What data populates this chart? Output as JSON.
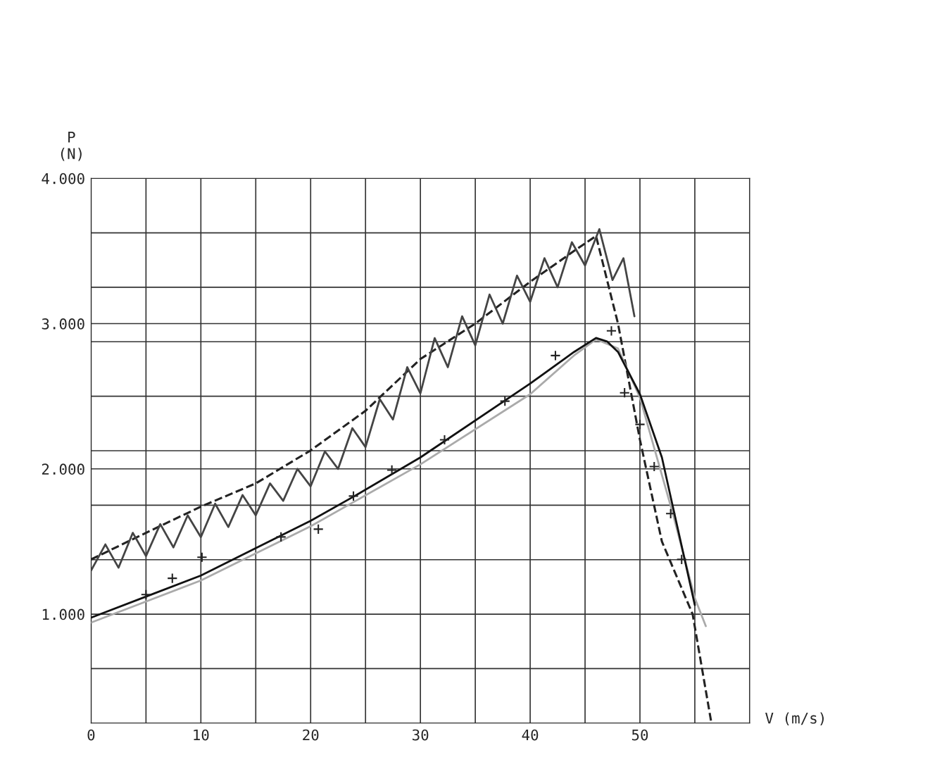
{
  "chart_data": {
    "type": "line",
    "xlabel": "V (m/s)",
    "ylabel": "P\n(N)",
    "xlim": [
      0,
      60
    ],
    "ylim": [
      250,
      4000
    ],
    "xticks": [
      0,
      {
        "value": 5,
        "label": null
      },
      10,
      {
        "value": 15,
        "label": null
      },
      20,
      {
        "value": 25,
        "label": null
      },
      30,
      {
        "value": 35,
        "label": null
      },
      40,
      {
        "value": 45,
        "label": null
      },
      50,
      {
        "value": 55,
        "label": null
      },
      {
        "value": 60,
        "label": null
      }
    ],
    "yticks": [
      {
        "value": 250,
        "label": null
      },
      {
        "value": 625,
        "label": null
      },
      {
        "value": 1000,
        "label": "1.000"
      },
      {
        "value": 1375,
        "label": null
      },
      {
        "value": 1750,
        "label": null
      },
      {
        "value": 2000,
        "label": "2.000"
      },
      {
        "value": 2125,
        "label": null
      },
      {
        "value": 2500,
        "label": null
      },
      {
        "value": 2875,
        "label": null
      },
      {
        "value": 3000,
        "label": "3.000"
      },
      {
        "value": 3250,
        "label": null
      },
      {
        "value": 3625,
        "label": null
      },
      {
        "value": 4000,
        "label": "4.000"
      }
    ],
    "grid": true,
    "series": [
      {
        "color": "#222222",
        "line_style": "dashed",
        "x": [
          0,
          5,
          10,
          15,
          20,
          25,
          30,
          35,
          40,
          44,
          46,
          48,
          50,
          52,
          54.8,
          56.5
        ],
        "values": [
          1377,
          1560,
          1740,
          1900,
          2127,
          2400,
          2756,
          3000,
          3288,
          3500,
          3603,
          3000,
          2200,
          1500,
          1000,
          255
        ]
      },
      {
        "color": "#444444",
        "x": [
          0,
          1.3,
          2.5,
          3.8,
          5,
          6.3,
          7.5,
          8.8,
          10,
          11.3,
          12.5,
          13.8,
          15,
          16.3,
          17.5,
          18.8,
          20,
          21.3,
          22.5,
          23.8,
          25,
          26.3,
          27.5,
          28.8,
          30,
          31.3,
          32.5,
          33.8,
          35,
          36.3,
          37.5,
          38.8,
          40,
          41.3,
          42.5,
          43.8,
          45,
          46.3,
          47.5,
          48.5,
          49.5
        ],
        "values": [
          1300,
          1480,
          1320,
          1560,
          1400,
          1620,
          1460,
          1680,
          1530,
          1760,
          1600,
          1820,
          1680,
          1900,
          1780,
          2000,
          1880,
          2120,
          2000,
          2280,
          2150,
          2480,
          2340,
          2700,
          2520,
          2900,
          2700,
          3050,
          2850,
          3200,
          3000,
          3330,
          3150,
          3450,
          3250,
          3560,
          3400,
          3650,
          3300,
          3450,
          3050
        ]
      },
      {
        "color": "#aaaaaa",
        "x": [
          0,
          10,
          20,
          30,
          40,
          44,
          46,
          48,
          50,
          53,
          55,
          56
        ],
        "values": [
          942,
          1232,
          1605,
          2031,
          2514,
          2781,
          2892,
          2829,
          2490,
          1692,
          1111,
          918
        ]
      },
      {
        "color": "#111111",
        "x": [
          0,
          5,
          10,
          20,
          24,
          30,
          40,
          44,
          46,
          47,
          48,
          50,
          52,
          53,
          54,
          55
        ],
        "values": [
          976,
          1121,
          1266,
          1643,
          1813,
          2079,
          2587,
          2805,
          2901,
          2877,
          2805,
          2514,
          2079,
          1740,
          1402,
          1063
        ]
      },
      {
        "type": "scatter",
        "color": "#222222",
        "marker": "cross",
        "x": [
          5,
          7.4,
          10.1,
          17.3,
          20.7,
          23.9,
          27.4,
          32.2,
          37.7,
          42.3,
          47.4,
          48.6,
          50,
          51.3,
          52.8,
          53.8
        ],
        "values": [
          1135,
          1247,
          1392,
          1532,
          1585,
          1813,
          1992,
          2200,
          2466,
          2780,
          2950,
          2524,
          2306,
          2016,
          1692,
          1377
        ]
      }
    ]
  }
}
